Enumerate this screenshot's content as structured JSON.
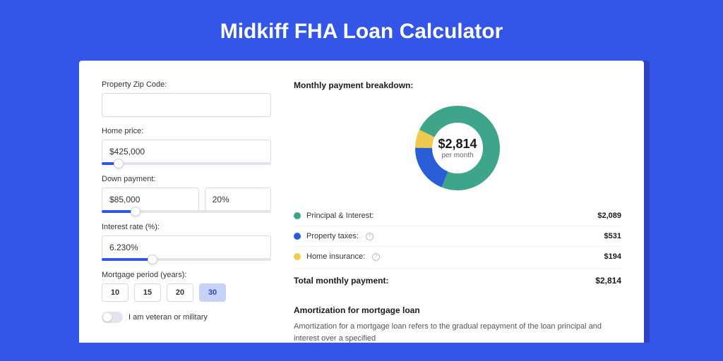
{
  "page": {
    "title": "Midkiff FHA Loan Calculator"
  },
  "form": {
    "zip": {
      "label": "Property Zip Code:",
      "value": ""
    },
    "price": {
      "label": "Home price:",
      "value": "$425,000",
      "slider_pct": 10
    },
    "down": {
      "label": "Down payment:",
      "amount": "$85,000",
      "pct": "20%",
      "slider_pct": 20
    },
    "rate": {
      "label": "Interest rate (%):",
      "value": "6.230%",
      "slider_pct": 30
    },
    "period": {
      "label": "Mortgage period (years):",
      "options": [
        "10",
        "15",
        "20",
        "30"
      ],
      "selected": "30"
    },
    "veteran": {
      "label": "I am veteran or military",
      "on": false
    }
  },
  "breakdown": {
    "title": "Monthly payment breakdown:",
    "center_amount": "$2,814",
    "center_sub": "per month",
    "items": [
      {
        "label": "Principal & Interest:",
        "value": "$2,089",
        "color": "#3fa58a",
        "pct": 74,
        "info": false
      },
      {
        "label": "Property taxes:",
        "value": "$531",
        "color": "#2a5ed6",
        "pct": 19,
        "info": true
      },
      {
        "label": "Home insurance:",
        "value": "$194",
        "color": "#f0c94f",
        "pct": 7,
        "info": true
      }
    ],
    "total_label": "Total monthly payment:",
    "total_value": "$2,814"
  },
  "amort": {
    "title": "Amortization for mortgage loan",
    "body": "Amortization for a mortgage loan refers to the gradual repayment of the loan principal and interest over a specified"
  },
  "donut": {
    "size": 128,
    "radius": 48,
    "stroke": 24,
    "bg_color": "#ffffff"
  }
}
